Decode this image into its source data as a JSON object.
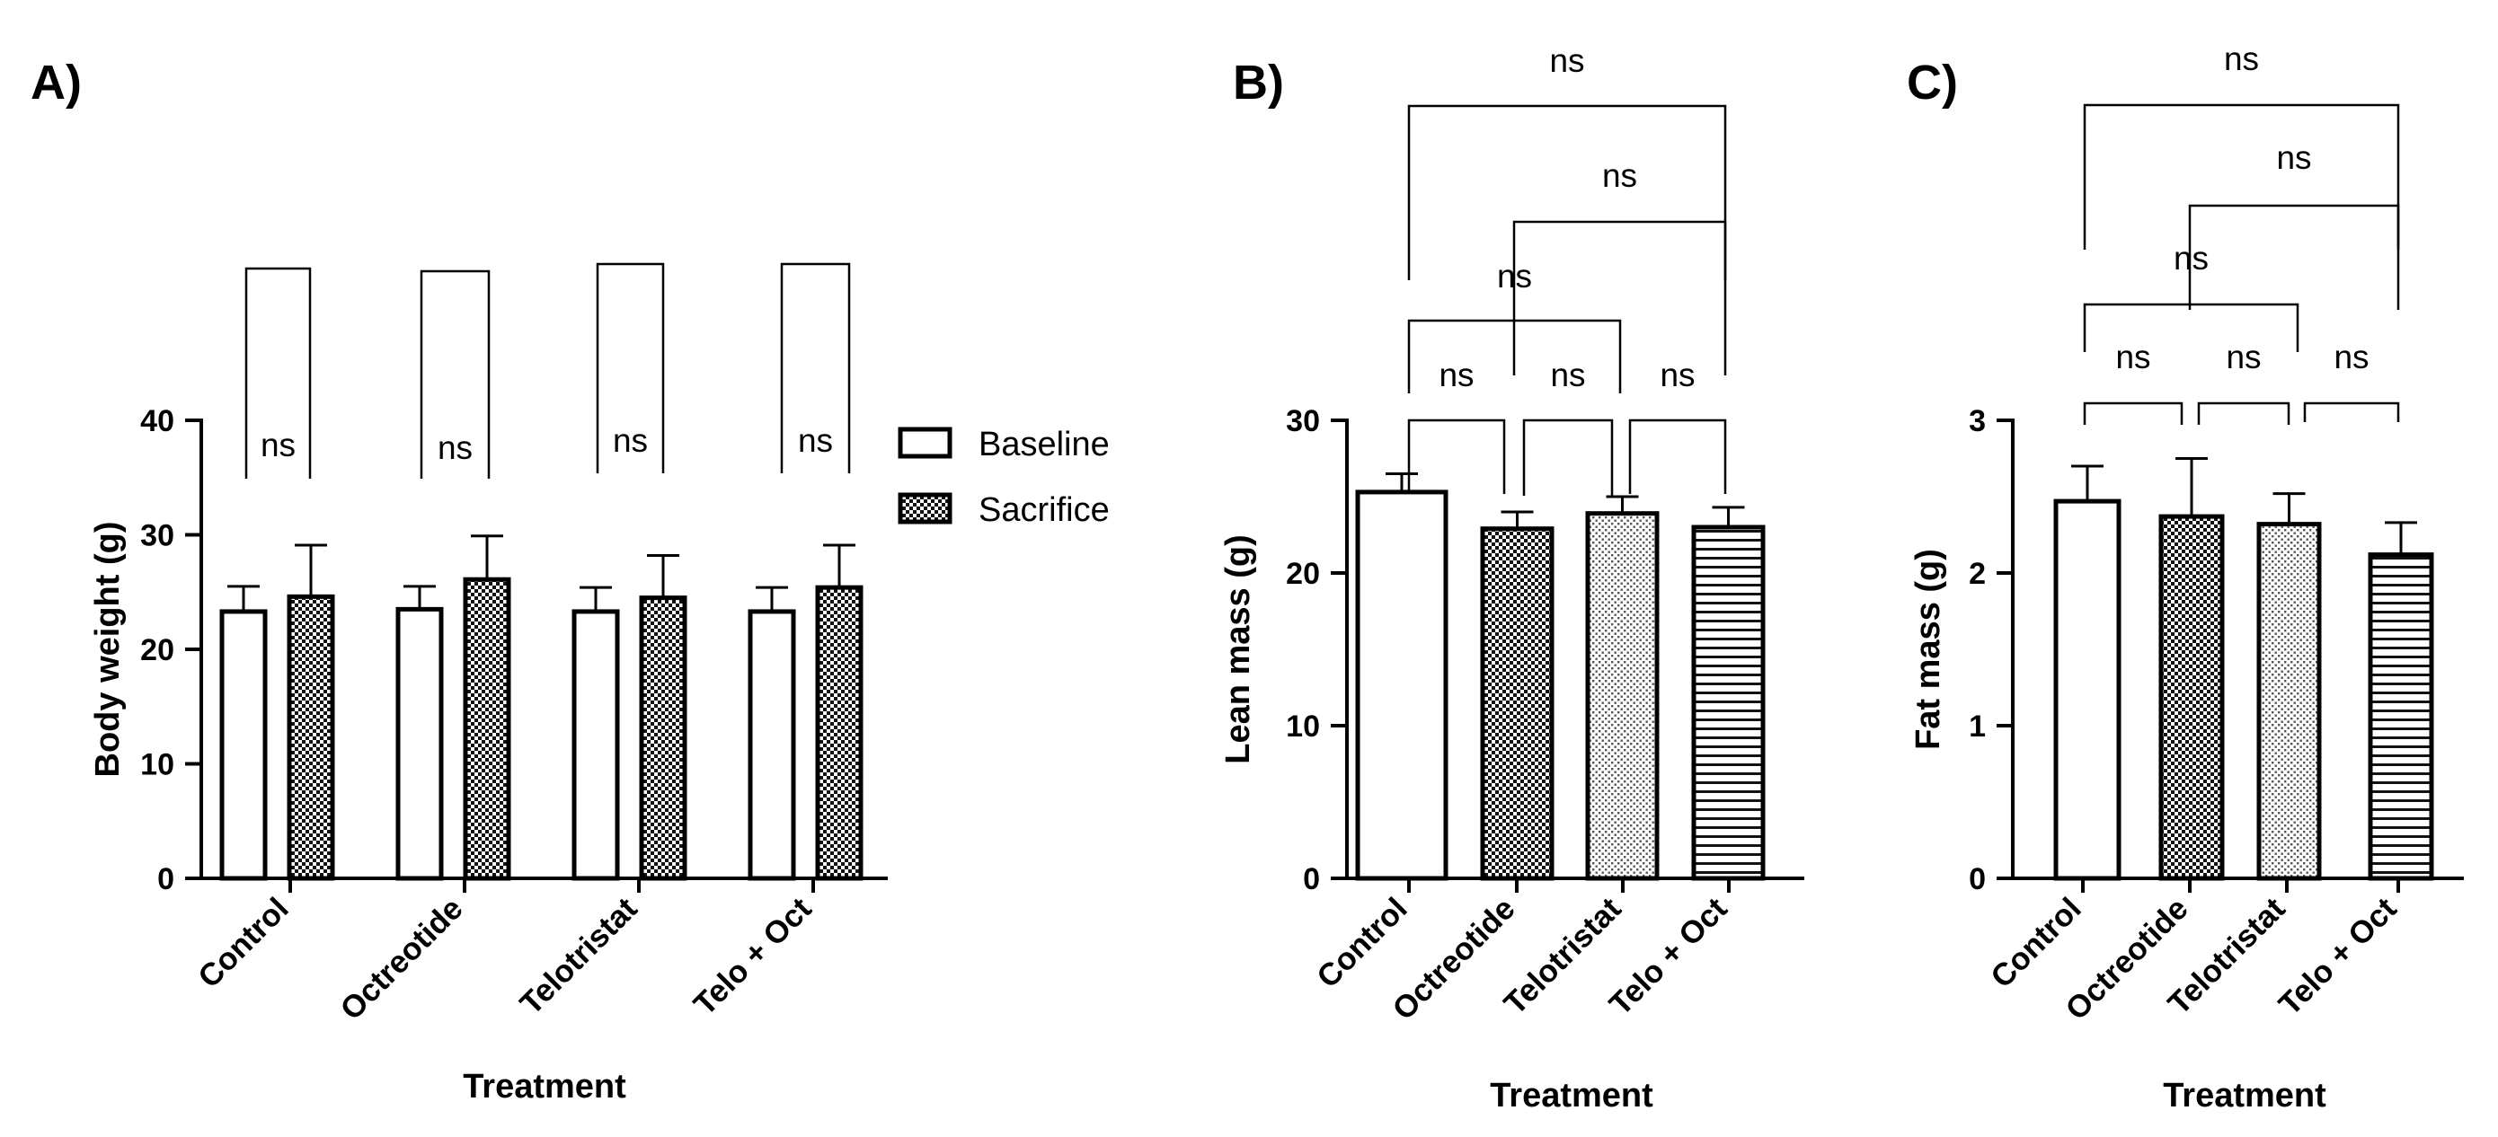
{
  "chart_data": [
    {
      "type": "bar",
      "panel_label": "A)",
      "categories": [
        "Control",
        "Octreotide",
        "Telotristat",
        "Telo + Oct"
      ],
      "series": [
        {
          "name": "Baseline",
          "values": [
            23.3,
            23.5,
            23.3,
            23.3
          ],
          "errors": [
            2.2,
            2.0,
            2.1,
            2.1
          ],
          "pattern": "open"
        },
        {
          "name": "Sacrifice",
          "values": [
            24.6,
            26.1,
            24.5,
            25.4
          ],
          "errors": [
            4.5,
            3.8,
            3.7,
            3.7
          ],
          "pattern": "check"
        }
      ],
      "xlabel": "Treatment",
      "ylabel": "Body weight (g)",
      "ylim": [
        0,
        40
      ],
      "yticks": [
        0,
        10,
        20,
        30,
        40
      ],
      "legend_position": "right",
      "annotations": [
        {
          "label": "ns",
          "between": [
            "Control Baseline",
            "Control Sacrifice"
          ]
        },
        {
          "label": "ns",
          "between": [
            "Octreotide Baseline",
            "Octreotide Sacrifice"
          ]
        },
        {
          "label": "ns",
          "between": [
            "Telotristat Baseline",
            "Telotristat Sacrifice"
          ]
        },
        {
          "label": "ns",
          "between": [
            "Telo + Oct Baseline",
            "Telo + Oct Sacrifice"
          ]
        }
      ]
    },
    {
      "type": "bar",
      "panel_label": "B)",
      "categories": [
        "Control",
        "Octreotide",
        "Telotristat",
        "Telo + Oct"
      ],
      "values": [
        25.3,
        22.9,
        23.9,
        23.0
      ],
      "errors": [
        1.2,
        1.1,
        1.1,
        1.3
      ],
      "patterns": [
        "open",
        "check",
        "dots",
        "hlines"
      ],
      "xlabel": "Treatment",
      "ylabel": "Lean mass (g)",
      "ylim": [
        0,
        30
      ],
      "yticks": [
        0,
        10,
        20,
        30
      ],
      "annotations": [
        {
          "label": "ns",
          "between": [
            "Control",
            "Octreotide"
          ]
        },
        {
          "label": "ns",
          "between": [
            "Octreotide",
            "Telotristat"
          ]
        },
        {
          "label": "ns",
          "between": [
            "Telotristat",
            "Telo + Oct"
          ]
        },
        {
          "label": "ns",
          "between": [
            "Control",
            "Telotristat"
          ]
        },
        {
          "label": "ns",
          "between": [
            "Octreotide",
            "Telo + Oct"
          ]
        },
        {
          "label": "ns",
          "between": [
            "Control",
            "Telo + Oct"
          ]
        }
      ]
    },
    {
      "type": "bar",
      "panel_label": "C)",
      "categories": [
        "Control",
        "Octreotide",
        "Telotristat",
        "Telo + Oct"
      ],
      "values": [
        2.47,
        2.37,
        2.32,
        2.12
      ],
      "errors": [
        0.23,
        0.38,
        0.2,
        0.21
      ],
      "patterns": [
        "open",
        "check",
        "dots",
        "hlines"
      ],
      "xlabel": "Treatment",
      "ylabel": "Fat mass (g)",
      "ylim": [
        0,
        3
      ],
      "yticks": [
        0,
        1,
        2,
        3
      ],
      "annotations": [
        {
          "label": "ns",
          "between": [
            "Control",
            "Octreotide"
          ]
        },
        {
          "label": "ns",
          "between": [
            "Octreotide",
            "Telotristat"
          ]
        },
        {
          "label": "ns",
          "between": [
            "Telotristat",
            "Telo + Oct"
          ]
        },
        {
          "label": "ns",
          "between": [
            "Control",
            "Telotristat"
          ]
        },
        {
          "label": "ns",
          "between": [
            "Octreotide",
            "Telo + Oct"
          ]
        },
        {
          "label": "ns",
          "between": [
            "Control",
            "Telo + Oct"
          ]
        }
      ]
    }
  ]
}
